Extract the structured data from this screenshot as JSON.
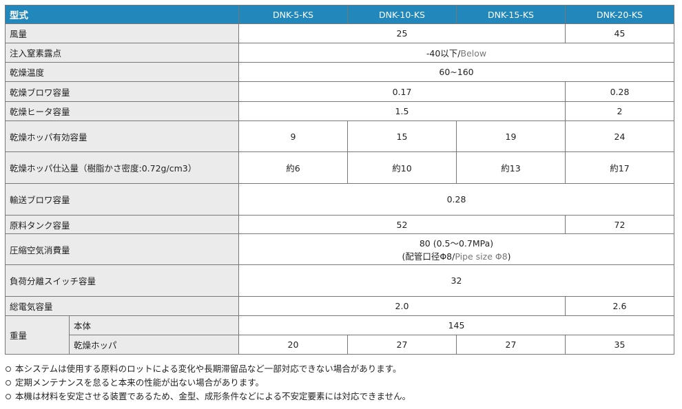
{
  "header": {
    "label": "型式",
    "models": [
      "DNK-5-KS",
      "DNK-10-KS",
      "DNK-15-KS",
      "DNK-20-KS"
    ]
  },
  "colors": {
    "header_bg": "#2287bb",
    "label_bg": "#ebebeb"
  },
  "rows": [
    {
      "label": "風量",
      "cells": [
        {
          "span": 3,
          "parts": [
            {
              "text": "25"
            }
          ]
        },
        {
          "span": 1,
          "parts": [
            {
              "text": "45"
            }
          ]
        }
      ]
    },
    {
      "label": "注入窒素露点",
      "cells": [
        {
          "span": 4,
          "parts": [
            {
              "text": "-40以下/"
            },
            {
              "text": "Below",
              "muted": true
            }
          ]
        }
      ]
    },
    {
      "label": "乾燥温度",
      "cells": [
        {
          "span": 4,
          "parts": [
            {
              "text": "60~160"
            }
          ]
        }
      ]
    },
    {
      "label": "乾燥ブロワ容量",
      "cells": [
        {
          "span": 3,
          "parts": [
            {
              "text": "0.17"
            }
          ]
        },
        {
          "span": 1,
          "parts": [
            {
              "text": "0.28"
            }
          ]
        }
      ]
    },
    {
      "label": "乾燥ヒータ容量",
      "cells": [
        {
          "span": 3,
          "parts": [
            {
              "text": "1.5"
            }
          ]
        },
        {
          "span": 1,
          "parts": [
            {
              "text": "2"
            }
          ]
        }
      ]
    },
    {
      "label": "乾燥ホッパ有効容量",
      "cells": [
        {
          "span": 1,
          "parts": [
            {
              "text": "9"
            }
          ]
        },
        {
          "span": 1,
          "parts": [
            {
              "text": "15"
            }
          ]
        },
        {
          "span": 1,
          "parts": [
            {
              "text": "19"
            }
          ]
        },
        {
          "span": 1,
          "parts": [
            {
              "text": "24"
            }
          ]
        }
      ]
    },
    {
      "label": "乾燥ホッパ仕込量（樹脂かさ密度:0.72g/cm3）",
      "cells": [
        {
          "span": 1,
          "parts": [
            {
              "text": "約6"
            }
          ]
        },
        {
          "span": 1,
          "parts": [
            {
              "text": "約10"
            }
          ]
        },
        {
          "span": 1,
          "parts": [
            {
              "text": "約13"
            }
          ]
        },
        {
          "span": 1,
          "parts": [
            {
              "text": "約17"
            }
          ]
        }
      ]
    },
    {
      "label": "輸送ブロワ容量",
      "cells": [
        {
          "span": 4,
          "parts": [
            {
              "text": "0.28"
            }
          ]
        }
      ]
    },
    {
      "label": "原料タンク容量",
      "cells": [
        {
          "span": 3,
          "parts": [
            {
              "text": "52"
            }
          ]
        },
        {
          "span": 1,
          "parts": [
            {
              "text": "72"
            }
          ]
        }
      ]
    },
    {
      "label": "圧縮空気消費量",
      "cells": [
        {
          "span": 4,
          "lines": [
            [
              {
                "text": "80 (0.5～0.7MPa)"
              }
            ],
            [
              {
                "text": "(配管口径Φ8/"
              },
              {
                "text": "Pipe size Φ8",
                "muted": true
              },
              {
                "text": ")"
              }
            ]
          ]
        }
      ]
    },
    {
      "label": "負荷分離スイッチ容量",
      "cells": [
        {
          "span": 4,
          "parts": [
            {
              "text": "32"
            }
          ]
        }
      ]
    },
    {
      "label": "総電気容量",
      "cells": [
        {
          "span": 3,
          "parts": [
            {
              "text": "2.0"
            }
          ]
        },
        {
          "span": 1,
          "parts": [
            {
              "text": "2.6"
            }
          ]
        }
      ]
    }
  ],
  "weight": {
    "label": "重量",
    "sub": [
      {
        "label": "本体",
        "cells": [
          {
            "span": 4,
            "parts": [
              {
                "text": "145"
              }
            ]
          }
        ]
      },
      {
        "label": "乾燥ホッパ",
        "cells": [
          {
            "span": 1,
            "parts": [
              {
                "text": "20"
              }
            ]
          },
          {
            "span": 1,
            "parts": [
              {
                "text": "27"
              }
            ]
          },
          {
            "span": 1,
            "parts": [
              {
                "text": "27"
              }
            ]
          },
          {
            "span": 1,
            "parts": [
              {
                "text": "35"
              }
            ]
          }
        ]
      }
    ]
  },
  "notes": [
    "本システムは使用する原料のロットによる変化や長期滞留品など一部対応できない場合があります。",
    "定期メンテナンスを怠ると本来の性能が出ない場合があります。",
    "本機は材料を安定させる装置であるため、金型、成形条件などによる不安定要素には対応できません。"
  ]
}
